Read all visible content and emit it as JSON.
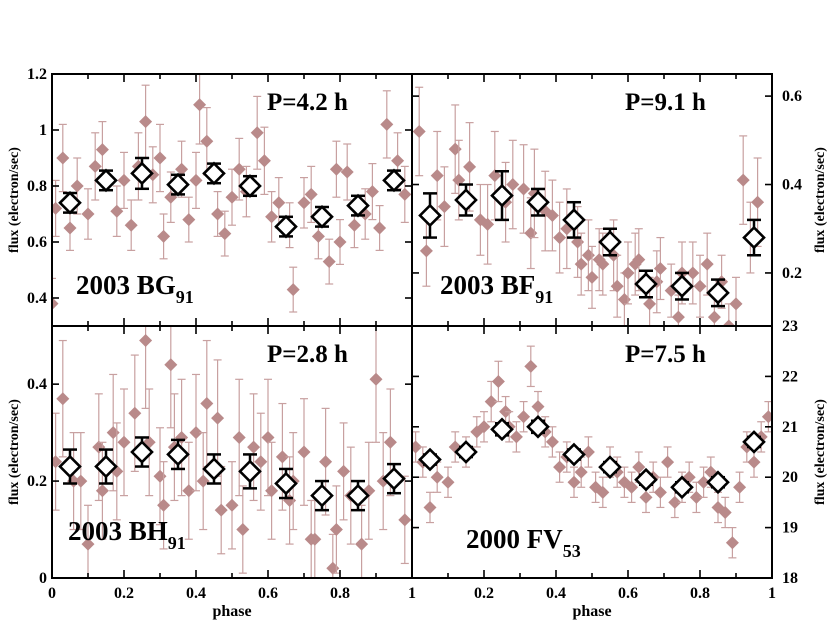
{
  "chart_data": [
    {
      "type": "scatter",
      "object_name": "2003 BG",
      "object_subscript": "91",
      "period_label": "P=4.2 h",
      "xlabel": "phase",
      "ylabel": "flux (electron/sec)",
      "y_axis_side": "left",
      "xlim": [
        0,
        1
      ],
      "ylim": [
        0.3,
        1.2
      ],
      "y_ticks": [
        {
          "v": 0.4,
          "label": "0.4"
        },
        {
          "v": 0.6,
          "label": "0.6"
        },
        {
          "v": 0.8,
          "label": "0.8"
        },
        {
          "v": 1.0,
          "label": "1"
        },
        {
          "v": 1.2,
          "label": "1.2"
        }
      ],
      "x_ticks": [],
      "binned": {
        "x": [
          0.05,
          0.15,
          0.25,
          0.35,
          0.45,
          0.55,
          0.65,
          0.75,
          0.85,
          0.95
        ],
        "y": [
          0.74,
          0.82,
          0.845,
          0.805,
          0.845,
          0.8,
          0.655,
          0.69,
          0.73,
          0.82
        ],
        "err": [
          0.035,
          0.035,
          0.055,
          0.035,
          0.035,
          0.035,
          0.035,
          0.035,
          0.035,
          0.035
        ]
      },
      "raw": {
        "x": [
          0.0,
          0.01,
          0.03,
          0.05,
          0.07,
          0.1,
          0.12,
          0.14,
          0.18,
          0.2,
          0.22,
          0.24,
          0.26,
          0.28,
          0.3,
          0.31,
          0.33,
          0.36,
          0.38,
          0.4,
          0.41,
          0.43,
          0.46,
          0.48,
          0.5,
          0.52,
          0.54,
          0.57,
          0.59,
          0.61,
          0.63,
          0.66,
          0.67,
          0.7,
          0.72,
          0.74,
          0.77,
          0.79,
          0.8,
          0.82,
          0.84,
          0.87,
          0.89,
          0.91,
          0.93,
          0.96,
          0.98
        ],
        "y": [
          0.38,
          0.72,
          0.9,
          0.65,
          0.8,
          0.7,
          0.87,
          0.93,
          0.71,
          0.82,
          0.66,
          0.87,
          1.03,
          0.84,
          0.9,
          0.62,
          0.76,
          0.86,
          0.68,
          0.82,
          1.09,
          0.96,
          0.7,
          0.63,
          0.76,
          0.86,
          0.78,
          0.99,
          0.89,
          0.69,
          0.74,
          0.66,
          0.43,
          0.74,
          0.77,
          0.62,
          0.53,
          0.86,
          0.6,
          0.85,
          0.66,
          0.7,
          0.78,
          0.65,
          1.02,
          0.89,
          0.77
        ],
        "err": [
          0.09,
          0.1,
          0.12,
          0.08,
          0.1,
          0.09,
          0.12,
          0.1,
          0.09,
          0.1,
          0.09,
          0.12,
          0.13,
          0.1,
          0.12,
          0.08,
          0.09,
          0.1,
          0.08,
          0.1,
          0.14,
          0.12,
          0.08,
          0.08,
          0.1,
          0.11,
          0.09,
          0.13,
          0.12,
          0.09,
          0.09,
          0.08,
          0.08,
          0.09,
          0.1,
          0.08,
          0.08,
          0.1,
          0.08,
          0.1,
          0.08,
          0.09,
          0.1,
          0.08,
          0.12,
          0.1,
          0.1
        ]
      }
    },
    {
      "type": "scatter",
      "object_name": "2003 BF",
      "object_subscript": "91",
      "period_label": "P=9.1 h",
      "xlabel": "phase",
      "ylabel": "flux (electron/sec)",
      "y_axis_side": "right",
      "xlim": [
        0,
        1
      ],
      "ylim": [
        0.08,
        0.65
      ],
      "y_ticks": [
        {
          "v": 0.2,
          "label": "0.2"
        },
        {
          "v": 0.4,
          "label": "0.4"
        },
        {
          "v": 0.6,
          "label": "0.6"
        }
      ],
      "x_ticks": [],
      "binned": {
        "x": [
          0.05,
          0.15,
          0.25,
          0.35,
          0.45,
          0.55,
          0.65,
          0.75,
          0.85,
          0.95
        ],
        "y": [
          0.33,
          0.365,
          0.375,
          0.36,
          0.32,
          0.27,
          0.175,
          0.17,
          0.155,
          0.28
        ],
        "err": [
          0.05,
          0.035,
          0.055,
          0.03,
          0.04,
          0.03,
          0.03,
          0.03,
          0.03,
          0.04
        ]
      },
      "raw": {
        "x": [
          0.02,
          0.04,
          0.07,
          0.09,
          0.12,
          0.13,
          0.16,
          0.19,
          0.21,
          0.23,
          0.26,
          0.28,
          0.31,
          0.33,
          0.34,
          0.37,
          0.39,
          0.41,
          0.43,
          0.46,
          0.47,
          0.49,
          0.5,
          0.52,
          0.53,
          0.56,
          0.57,
          0.59,
          0.6,
          0.62,
          0.63,
          0.66,
          0.68,
          0.69,
          0.72,
          0.74,
          0.75,
          0.78,
          0.8,
          0.82,
          0.84,
          0.86,
          0.88,
          0.9,
          0.92,
          0.94,
          0.96
        ],
        "y": [
          0.52,
          0.25,
          0.42,
          0.35,
          0.48,
          0.41,
          0.44,
          0.32,
          0.31,
          0.42,
          0.36,
          0.4,
          0.39,
          0.29,
          0.38,
          0.34,
          0.33,
          0.28,
          0.3,
          0.27,
          0.22,
          0.24,
          0.19,
          0.23,
          0.22,
          0.24,
          0.17,
          0.14,
          0.2,
          0.22,
          0.23,
          0.13,
          0.18,
          0.21,
          0.16,
          0.1,
          0.2,
          0.2,
          0.17,
          0.22,
          0.1,
          0.18,
          0.08,
          0.13,
          0.41,
          0.28,
          0.36
        ],
        "err": [
          0.1,
          0.08,
          0.1,
          0.09,
          0.1,
          0.09,
          0.1,
          0.08,
          0.09,
          0.1,
          0.09,
          0.1,
          0.1,
          0.08,
          0.1,
          0.09,
          0.08,
          0.08,
          0.09,
          0.08,
          0.07,
          0.08,
          0.07,
          0.07,
          0.07,
          0.08,
          0.07,
          0.06,
          0.07,
          0.07,
          0.07,
          0.06,
          0.07,
          0.07,
          0.06,
          0.05,
          0.07,
          0.07,
          0.07,
          0.07,
          0.05,
          0.06,
          0.05,
          0.06,
          0.1,
          0.08,
          0.1
        ]
      }
    },
    {
      "type": "scatter",
      "object_name": "2003 BH",
      "object_subscript": "91",
      "period_label": "P=2.8 h",
      "xlabel": "phase",
      "ylabel": "flux (electron/sec)",
      "y_axis_side": "left",
      "xlim": [
        0,
        1
      ],
      "ylim": [
        0,
        0.52
      ],
      "y_ticks": [
        {
          "v": 0,
          "label": "0"
        },
        {
          "v": 0.2,
          "label": "0.2"
        },
        {
          "v": 0.4,
          "label": "0.4"
        }
      ],
      "x_ticks": [
        {
          "v": 0,
          "label": "0"
        },
        {
          "v": 0.2,
          "label": "0.2"
        },
        {
          "v": 0.4,
          "label": "0.4"
        },
        {
          "v": 0.6,
          "label": "0.6"
        },
        {
          "v": 0.8,
          "label": "0.8"
        },
        {
          "v": 1,
          "label": "1"
        }
      ],
      "binned": {
        "x": [
          0.05,
          0.15,
          0.25,
          0.35,
          0.45,
          0.55,
          0.65,
          0.75,
          0.85,
          0.95
        ],
        "y": [
          0.23,
          0.23,
          0.26,
          0.255,
          0.225,
          0.22,
          0.195,
          0.17,
          0.17,
          0.205
        ],
        "err": [
          0.035,
          0.035,
          0.03,
          0.03,
          0.03,
          0.035,
          0.03,
          0.03,
          0.03,
          0.03
        ]
      },
      "raw": {
        "x": [
          0.01,
          0.03,
          0.06,
          0.08,
          0.1,
          0.13,
          0.14,
          0.17,
          0.18,
          0.2,
          0.23,
          0.26,
          0.27,
          0.3,
          0.31,
          0.33,
          0.34,
          0.36,
          0.38,
          0.4,
          0.42,
          0.43,
          0.46,
          0.47,
          0.5,
          0.52,
          0.53,
          0.56,
          0.58,
          0.6,
          0.61,
          0.64,
          0.66,
          0.67,
          0.7,
          0.72,
          0.73,
          0.76,
          0.78,
          0.79,
          0.81,
          0.83,
          0.86,
          0.88,
          0.9,
          0.92,
          0.94,
          0.98
        ],
        "y": [
          0.24,
          0.37,
          0.2,
          0.2,
          0.07,
          0.27,
          0.18,
          0.3,
          0.22,
          0.28,
          0.34,
          0.49,
          0.28,
          0.21,
          0.15,
          0.44,
          0.27,
          0.29,
          0.18,
          0.3,
          0.2,
          0.36,
          0.33,
          0.14,
          0.15,
          0.29,
          0.1,
          0.27,
          0.24,
          0.29,
          0.18,
          0.25,
          0.16,
          0.2,
          0.26,
          0.08,
          0.08,
          0.24,
          0.02,
          0.1,
          0.22,
          0.17,
          0.07,
          0.18,
          0.41,
          0.2,
          0.28,
          0.12
        ],
        "err": [
          0.1,
          0.12,
          0.1,
          0.1,
          0.08,
          0.11,
          0.1,
          0.12,
          0.1,
          0.11,
          0.12,
          0.14,
          0.11,
          0.1,
          0.09,
          0.13,
          0.11,
          0.12,
          0.1,
          0.12,
          0.1,
          0.13,
          0.12,
          0.09,
          0.09,
          0.12,
          0.09,
          0.11,
          0.1,
          0.12,
          0.1,
          0.11,
          0.09,
          0.1,
          0.11,
          0.08,
          0.08,
          0.11,
          0.07,
          0.09,
          0.1,
          0.1,
          0.08,
          0.1,
          0.13,
          0.1,
          0.11,
          0.09
        ]
      }
    },
    {
      "type": "scatter",
      "object_name": "2000 FV",
      "object_subscript": "53",
      "period_label": "P=7.5 h",
      "xlabel": "phase",
      "ylabel": "flux (electron/sec)",
      "y_axis_side": "right",
      "xlim": [
        0,
        1
      ],
      "ylim": [
        18,
        23
      ],
      "y_ticks": [
        {
          "v": 18,
          "label": "18"
        },
        {
          "v": 19,
          "label": "19"
        },
        {
          "v": 20,
          "label": "20"
        },
        {
          "v": 21,
          "label": "21"
        },
        {
          "v": 22,
          "label": "22"
        },
        {
          "v": 23,
          "label": "23"
        }
      ],
      "x_ticks": [
        {
          "v": 0.2,
          "label": "0.2"
        },
        {
          "v": 0.4,
          "label": "0.4"
        },
        {
          "v": 0.6,
          "label": "0.6"
        },
        {
          "v": 0.8,
          "label": "0.8"
        },
        {
          "v": 1,
          "label": "1"
        }
      ],
      "binned": {
        "x": [
          0.05,
          0.15,
          0.25,
          0.35,
          0.45,
          0.55,
          0.65,
          0.75,
          0.85,
          0.95
        ],
        "y": [
          20.35,
          20.5,
          20.95,
          21.0,
          20.45,
          20.2,
          19.95,
          19.8,
          19.9,
          20.7
        ],
        "err": [
          0.1,
          0.1,
          0.12,
          0.12,
          0.1,
          0.1,
          0.1,
          0.1,
          0.1,
          0.1
        ]
      },
      "raw": {
        "x": [
          0.01,
          0.03,
          0.05,
          0.07,
          0.1,
          0.12,
          0.15,
          0.18,
          0.2,
          0.22,
          0.24,
          0.26,
          0.27,
          0.29,
          0.31,
          0.33,
          0.35,
          0.37,
          0.39,
          0.41,
          0.43,
          0.45,
          0.47,
          0.49,
          0.51,
          0.53,
          0.55,
          0.57,
          0.59,
          0.61,
          0.63,
          0.65,
          0.67,
          0.69,
          0.71,
          0.73,
          0.75,
          0.77,
          0.79,
          0.81,
          0.83,
          0.85,
          0.87,
          0.89,
          0.91,
          0.93,
          0.95,
          0.97,
          0.99
        ],
        "y": [
          20.6,
          20.3,
          19.4,
          20.0,
          19.9,
          20.6,
          20.5,
          20.9,
          21.0,
          21.5,
          21.9,
          21.3,
          21.0,
          20.8,
          21.2,
          22.2,
          21.4,
          20.9,
          20.7,
          20.2,
          20.4,
          19.9,
          20.1,
          20.5,
          19.8,
          19.7,
          20.3,
          20.1,
          19.9,
          19.8,
          20.2,
          19.6,
          20.0,
          19.7,
          20.3,
          19.5,
          19.8,
          20.0,
          19.6,
          19.9,
          20.1,
          19.4,
          19.3,
          18.7,
          19.8,
          20.6,
          20.3,
          20.8,
          21.2
        ],
        "err": [
          0.3,
          0.3,
          0.3,
          0.3,
          0.3,
          0.3,
          0.3,
          0.3,
          0.3,
          0.4,
          0.4,
          0.3,
          0.3,
          0.3,
          0.3,
          0.4,
          0.3,
          0.3,
          0.3,
          0.3,
          0.3,
          0.3,
          0.3,
          0.3,
          0.3,
          0.3,
          0.3,
          0.3,
          0.3,
          0.3,
          0.3,
          0.3,
          0.3,
          0.3,
          0.3,
          0.3,
          0.3,
          0.3,
          0.3,
          0.3,
          0.3,
          0.3,
          0.3,
          0.3,
          0.3,
          0.3,
          0.3,
          0.3,
          0.3
        ]
      }
    }
  ]
}
